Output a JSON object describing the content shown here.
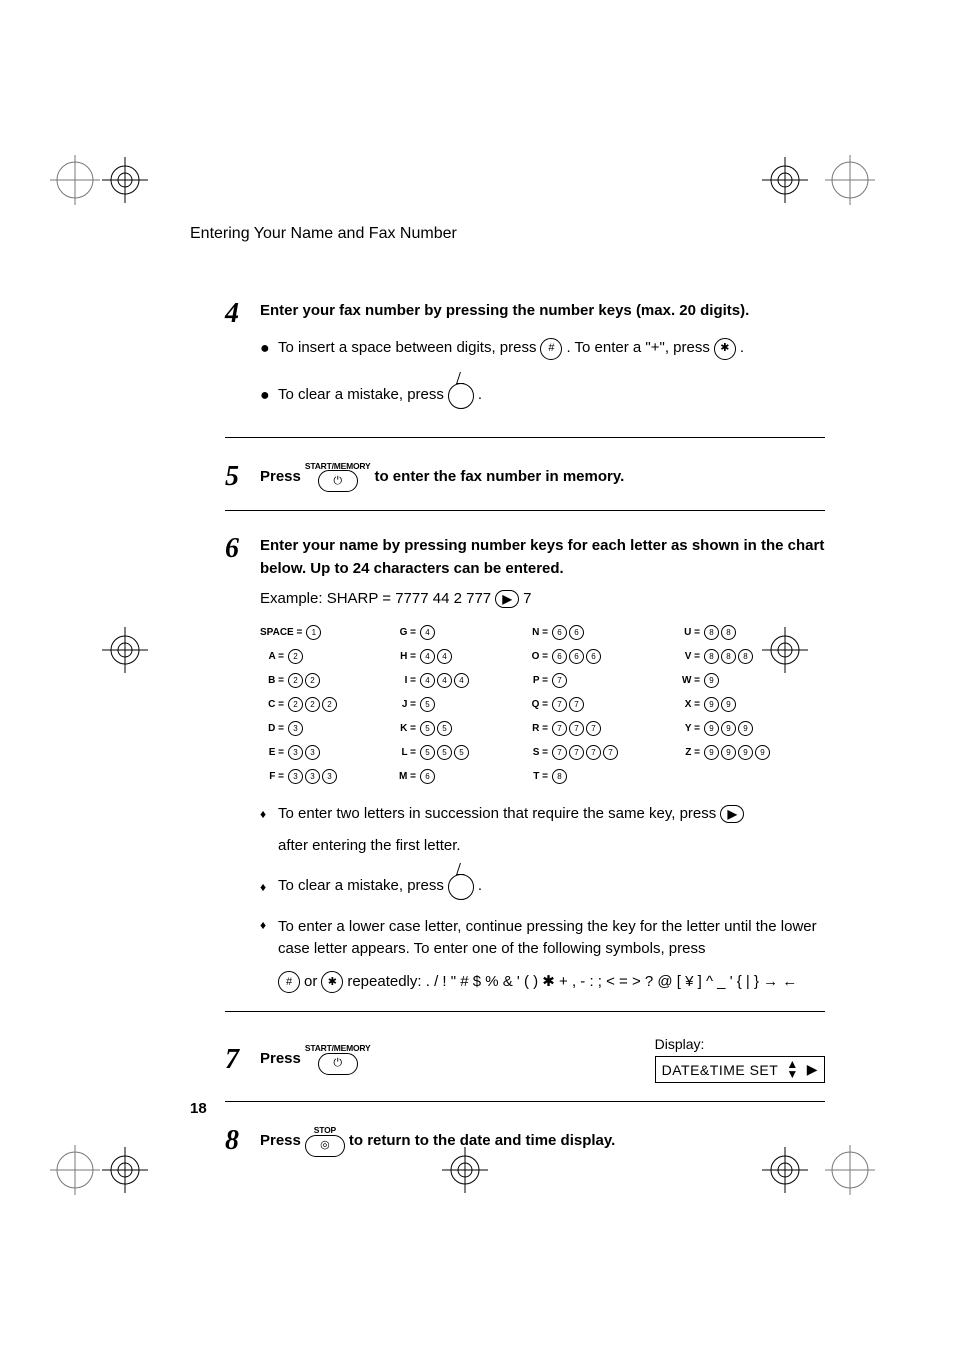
{
  "header": {
    "title": "Entering Your Name and Fax Number"
  },
  "page_number": "18",
  "steps": {
    "s4": {
      "num": "4",
      "lead": "Enter your fax number by pressing the number keys (max. 20 digits).",
      "b1_pre": "To insert a space between digits, press",
      "b1_mid": ". To enter a \"+\", press",
      "b1_post": ".",
      "b2_pre": "To clear a mistake, press",
      "b2_post": "."
    },
    "s5": {
      "num": "5",
      "press": "Press",
      "key_label": "START/MEMORY",
      "tail": "to enter the fax number in memory."
    },
    "s6": {
      "num": "6",
      "lead": "Enter your name by pressing number keys for each letter as shown in the chart below. Up to 24 characters can be entered.",
      "example_pre": "Example: SHARP = 7777  44  2  777",
      "example_post": "7",
      "db1_pre": "To enter two letters in succession that require the same key, press",
      "db1_post": "after entering the first letter.",
      "db2_pre": "To clear a mistake, press",
      "db2_post": ".",
      "db3_line1": "To enter a lower case letter, continue pressing the key for the letter until the lower case letter appears. To enter one of the following symbols, press",
      "db3_or": "or",
      "db3_rep": "repeatedly: . / ! \" # $ % & ' ( ) ✱ + , - : ; < = > ? @ [ ¥ ] ^ _ ' { | } → ←"
    },
    "s7": {
      "num": "7",
      "press": "Press",
      "key_label": "START/MEMORY",
      "display_label": "Display:",
      "display_text": "DATE&TIME SET"
    },
    "s8": {
      "num": "8",
      "press": "Press",
      "key_label": "STOP",
      "tail": "to return to the date and time display."
    }
  },
  "letter_map": {
    "col1": [
      {
        "lbl": "SPACE =",
        "keys": [
          "1"
        ],
        "space": true
      },
      {
        "lbl": "A =",
        "keys": [
          "2"
        ]
      },
      {
        "lbl": "B =",
        "keys": [
          "2",
          "2"
        ]
      },
      {
        "lbl": "C =",
        "keys": [
          "2",
          "2",
          "2"
        ]
      },
      {
        "lbl": "D =",
        "keys": [
          "3"
        ]
      },
      {
        "lbl": "E =",
        "keys": [
          "3",
          "3"
        ]
      },
      {
        "lbl": "F =",
        "keys": [
          "3",
          "3",
          "3"
        ]
      }
    ],
    "col2": [
      {
        "lbl": "G =",
        "keys": [
          "4"
        ]
      },
      {
        "lbl": "H =",
        "keys": [
          "4",
          "4"
        ]
      },
      {
        "lbl": "I =",
        "keys": [
          "4",
          "4",
          "4"
        ]
      },
      {
        "lbl": "J =",
        "keys": [
          "5"
        ]
      },
      {
        "lbl": "K =",
        "keys": [
          "5",
          "5"
        ]
      },
      {
        "lbl": "L =",
        "keys": [
          "5",
          "5",
          "5"
        ]
      },
      {
        "lbl": "M =",
        "keys": [
          "6"
        ]
      }
    ],
    "col3": [
      {
        "lbl": "N =",
        "keys": [
          "6",
          "6"
        ]
      },
      {
        "lbl": "O =",
        "keys": [
          "6",
          "6",
          "6"
        ]
      },
      {
        "lbl": "P =",
        "keys": [
          "7"
        ]
      },
      {
        "lbl": "Q =",
        "keys": [
          "7",
          "7"
        ]
      },
      {
        "lbl": "R =",
        "keys": [
          "7",
          "7",
          "7"
        ]
      },
      {
        "lbl": "S =",
        "keys": [
          "7",
          "7",
          "7",
          "7"
        ]
      },
      {
        "lbl": "T =",
        "keys": [
          "8"
        ]
      }
    ],
    "col4": [
      {
        "lbl": "U =",
        "keys": [
          "8",
          "8"
        ]
      },
      {
        "lbl": "V =",
        "keys": [
          "8",
          "8",
          "8"
        ]
      },
      {
        "lbl": "W =",
        "keys": [
          "9"
        ]
      },
      {
        "lbl": "X =",
        "keys": [
          "9",
          "9"
        ]
      },
      {
        "lbl": "Y =",
        "keys": [
          "9",
          "9",
          "9"
        ]
      },
      {
        "lbl": "Z =",
        "keys": [
          "9",
          "9",
          "9",
          "9"
        ]
      }
    ]
  },
  "icons": {
    "hash": "#",
    "star": "✱",
    "right_arrow": "▶",
    "circle_power": "⏻",
    "stop_glyph": "◎"
  }
}
